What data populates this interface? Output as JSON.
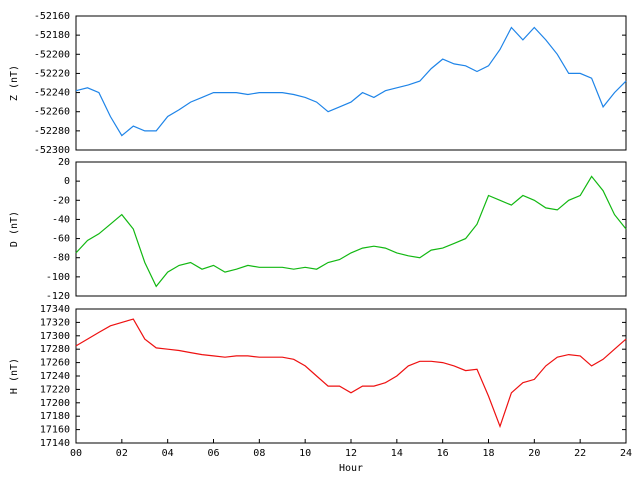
{
  "chart_data": [
    {
      "type": "line",
      "ylabel": "Z (nT)",
      "color": "#1e84e8",
      "x": [
        0,
        0.5,
        1,
        1.5,
        2,
        2.5,
        3,
        3.5,
        4,
        4.5,
        5,
        5.5,
        6,
        6.5,
        7,
        7.5,
        8,
        8.5,
        9,
        9.5,
        10,
        10.5,
        11,
        11.5,
        12,
        12.5,
        13,
        13.5,
        14,
        14.5,
        15,
        15.5,
        16,
        16.5,
        17,
        17.5,
        18,
        18.5,
        19,
        19.5,
        20,
        20.5,
        21,
        21.5,
        22,
        22.5,
        23,
        23.5,
        24
      ],
      "values": [
        -52238,
        -52235,
        -52240,
        -52265,
        -52285,
        -52275,
        -52280,
        -52280,
        -52265,
        -52258,
        -52250,
        -52245,
        -52240,
        -52240,
        -52240,
        -52242,
        -52240,
        -52240,
        -52240,
        -52242,
        -52245,
        -52250,
        -52260,
        -52255,
        -52250,
        -52240,
        -52245,
        -52238,
        -52235,
        -52232,
        -52228,
        -52215,
        -52205,
        -52210,
        -52212,
        -52218,
        -52212,
        -52195,
        -52172,
        -52185,
        -52172,
        -52185,
        -52200,
        -52220,
        -52220,
        -52225,
        -52255,
        -52240,
        -52228
      ],
      "xlim": [
        0,
        24
      ],
      "ylim": [
        -52300,
        -52160
      ],
      "yticks": [
        -52300,
        -52280,
        -52260,
        -52240,
        -52220,
        -52200,
        -52180,
        -52160
      ]
    },
    {
      "type": "line",
      "ylabel": "D (nT)",
      "color": "#12b812",
      "x": [
        0,
        0.5,
        1,
        1.5,
        2,
        2.5,
        3,
        3.5,
        4,
        4.5,
        5,
        5.5,
        6,
        6.5,
        7,
        7.5,
        8,
        8.5,
        9,
        9.5,
        10,
        10.5,
        11,
        11.5,
        12,
        12.5,
        13,
        13.5,
        14,
        14.5,
        15,
        15.5,
        16,
        16.5,
        17,
        17.5,
        18,
        18.5,
        19,
        19.5,
        20,
        20.5,
        21,
        21.5,
        22,
        22.5,
        23,
        23.5,
        24
      ],
      "values": [
        -75,
        -62,
        -55,
        -45,
        -35,
        -50,
        -85,
        -110,
        -95,
        -88,
        -85,
        -92,
        -88,
        -95,
        -92,
        -88,
        -90,
        -90,
        -90,
        -92,
        -90,
        -92,
        -85,
        -82,
        -75,
        -70,
        -68,
        -70,
        -75,
        -78,
        -80,
        -72,
        -70,
        -65,
        -60,
        -45,
        -15,
        -20,
        -25,
        -15,
        -20,
        -28,
        -30,
        -20,
        -15,
        5,
        -10,
        -35,
        -50
      ],
      "xlim": [
        0,
        24
      ],
      "ylim": [
        -120,
        20
      ],
      "yticks": [
        -120,
        -100,
        -80,
        -60,
        -40,
        -20,
        0,
        20
      ]
    },
    {
      "type": "line",
      "ylabel": "H (nT)",
      "xlabel": "Hour",
      "color": "#ee1111",
      "x": [
        0,
        0.5,
        1,
        1.5,
        2,
        2.5,
        3,
        3.5,
        4,
        4.5,
        5,
        5.5,
        6,
        6.5,
        7,
        7.5,
        8,
        8.5,
        9,
        9.5,
        10,
        10.5,
        11,
        11.5,
        12,
        12.5,
        13,
        13.5,
        14,
        14.5,
        15,
        15.5,
        16,
        16.5,
        17,
        17.5,
        18,
        18.5,
        19,
        19.5,
        20,
        20.5,
        21,
        21.5,
        22,
        22.5,
        23,
        23.5,
        24
      ],
      "values": [
        17285,
        17295,
        17305,
        17315,
        17320,
        17325,
        17295,
        17282,
        17280,
        17278,
        17275,
        17272,
        17270,
        17268,
        17270,
        17270,
        17268,
        17268,
        17268,
        17265,
        17255,
        17240,
        17225,
        17225,
        17215,
        17225,
        17225,
        17230,
        17240,
        17255,
        17262,
        17262,
        17260,
        17255,
        17248,
        17250,
        17210,
        17165,
        17215,
        17230,
        17235,
        17255,
        17268,
        17272,
        17270,
        17255,
        17265,
        17280,
        17295
      ],
      "xlim": [
        0,
        24
      ],
      "ylim": [
        17140,
        17340
      ],
      "yticks": [
        17140,
        17160,
        17180,
        17200,
        17220,
        17240,
        17260,
        17280,
        17300,
        17320,
        17340
      ],
      "xticks": [
        {
          "value": 0,
          "label": "00"
        },
        {
          "value": 2,
          "label": "02"
        },
        {
          "value": 4,
          "label": "04"
        },
        {
          "value": 6,
          "label": "06"
        },
        {
          "value": 8,
          "label": "08"
        },
        {
          "value": 10,
          "label": "10"
        },
        {
          "value": 12,
          "label": "12"
        },
        {
          "value": 14,
          "label": "14"
        },
        {
          "value": 16,
          "label": "16"
        },
        {
          "value": 18,
          "label": "18"
        },
        {
          "value": 20,
          "label": "20"
        },
        {
          "value": 22,
          "label": "22"
        },
        {
          "value": 24,
          "label": "24"
        }
      ]
    }
  ]
}
